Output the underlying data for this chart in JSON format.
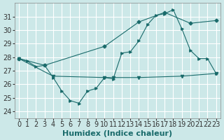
{
  "xlabel": "Humidex (Indice chaleur)",
  "background_color": "#cce8e8",
  "grid_color": "#ffffff",
  "line_color": "#1a6b6b",
  "ylim": [
    23.5,
    32.0
  ],
  "xlim": [
    -0.5,
    23.5
  ],
  "yticks": [
    24,
    25,
    26,
    27,
    28,
    29,
    30,
    31
  ],
  "xticks": [
    0,
    1,
    2,
    3,
    4,
    5,
    6,
    7,
    8,
    9,
    10,
    11,
    12,
    13,
    14,
    15,
    16,
    17,
    18,
    19,
    20,
    21,
    22,
    23
  ],
  "series1_x": [
    0,
    1,
    2,
    3,
    4,
    5,
    6,
    7,
    8,
    9,
    10,
    11,
    12,
    13,
    14,
    15,
    16,
    17,
    18,
    19,
    20,
    21,
    22,
    23
  ],
  "series1_y": [
    27.9,
    27.7,
    27.3,
    27.4,
    26.5,
    25.5,
    24.8,
    24.6,
    25.5,
    25.7,
    26.5,
    26.4,
    28.3,
    28.4,
    29.2,
    30.4,
    31.1,
    31.2,
    31.5,
    30.1,
    28.5,
    27.9,
    27.9,
    26.8
  ],
  "series2_x": [
    0,
    3,
    10,
    14,
    17,
    20,
    23
  ],
  "series2_y": [
    27.9,
    27.4,
    28.8,
    30.6,
    31.3,
    30.5,
    30.7
  ],
  "series3_x": [
    0,
    4,
    10,
    11,
    14,
    19,
    23
  ],
  "series3_y": [
    27.9,
    26.6,
    26.5,
    26.5,
    26.5,
    26.6,
    26.8
  ],
  "tick_fontsize": 7,
  "label_fontsize": 8
}
